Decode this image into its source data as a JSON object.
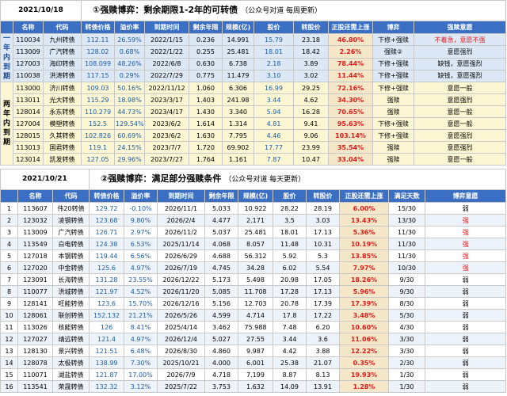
{
  "top": {
    "date": "2021/10/18",
    "title": "①强赎博弈：剩余期限1-2年的可转债",
    "subtitle": "（公众号对道 每周更新）",
    "headers": [
      "名称",
      "代码",
      "转债价格",
      "溢价率",
      "到期时间",
      "剩余年限",
      "规模(亿)",
      "股价",
      "转股价",
      "正股还需上涨",
      "博弈",
      "强赎意愿"
    ],
    "groups": [
      {
        "label": "一年内到期",
        "rows": [
          [
            "110034",
            "九州转债",
            "112.11",
            "26.59%",
            "2022/1/15",
            "0.236",
            "14.991",
            "15.79",
            "23.18",
            "46.80%",
            "下修+强赎",
            "不着急，意愿不强"
          ],
          [
            "113009",
            "广汽转债",
            "128.02",
            "0.68%",
            "2022/1/22",
            "0.255",
            "25.481",
            "18.01",
            "18.42",
            "2.26%",
            "强赎②",
            "意愿强烈"
          ],
          [
            "127003",
            "海印转债",
            "108.099",
            "48.26%",
            "2022/6/8",
            "0.630",
            "6.738",
            "2.18",
            "3.89",
            "78.44%",
            "下修+强赎",
            "缺钱，意愿强烈"
          ],
          [
            "110038",
            "洪涛转债",
            "117.15",
            "0.29%",
            "2022/7/29",
            "0.775",
            "11.479",
            "3.10",
            "3.02",
            "11.44%",
            "下修+强赎",
            "缺钱，意愿强烈"
          ]
        ]
      },
      {
        "label": "两年内到期",
        "rows": [
          [
            "113000",
            "济川转债",
            "109.03",
            "50.16%",
            "2022/11/12",
            "1.060",
            "6.306",
            "16.99",
            "29.25",
            "72.16%",
            "下修+强赎",
            "意愿一般"
          ],
          [
            "113011",
            "光大转债",
            "115.29",
            "18.98%",
            "2023/3/17",
            "1.403",
            "241.98",
            "3.44",
            "4.62",
            "34.30%",
            "强赎",
            "意愿强烈"
          ],
          [
            "128014",
            "永东转债",
            "110.279",
            "44.73%",
            "2023/4/17",
            "1.430",
            "3.340",
            "5.94",
            "16.28",
            "70.65%",
            "强赎",
            "意愿一般"
          ],
          [
            "127004",
            "模塑转债",
            "152.5",
            "129.54%",
            "2023/6/2",
            "1.614",
            "1.314",
            "4.81",
            "9.41",
            "95.63%",
            "下修+强赎",
            "意愿一般"
          ],
          [
            "128015",
            "久其转债",
            "102.826",
            "60.69%",
            "2023/6/2",
            "1.630",
            "7.795",
            "4.46",
            "9.06",
            "103.14%",
            "下修+强赎",
            "意愿强烈"
          ],
          [
            "113013",
            "国君转债",
            "119.1",
            "24.15%",
            "2023/7/7",
            "1.720",
            "69.902",
            "17.77",
            "23.99",
            "35.54%",
            "强赎",
            "意愿强烈"
          ],
          [
            "123014",
            "凯发转债",
            "127.05",
            "29.96%",
            "2023/7/27",
            "1.764",
            "1.161",
            "7.87",
            "10.47",
            "33.04%",
            "强赎",
            "意愿一般"
          ]
        ]
      }
    ]
  },
  "bottom": {
    "date": "2021/10/21",
    "title": "②强赎博弈：满足部分强赎条件",
    "subtitle": "（公众号对道 每天更新）",
    "headers": [
      "",
      "名称",
      "代码",
      "转债价格",
      "溢价率",
      "到期时间",
      "剩余年限",
      "规模(亿)",
      "股价",
      "转股价",
      "正股还需上涨",
      "满足天数",
      "博弈意愿"
    ],
    "rows": [
      [
        "1",
        "113607",
        "伟20转债",
        "129.72",
        "-0.10%",
        "2026/11/1",
        "5.033",
        "10.922",
        "28.22",
        "28.19",
        "6.00%",
        "15/30",
        "弱"
      ],
      [
        "2",
        "123032",
        "凌钢转债",
        "123.68",
        "9.80%",
        "2026/2/4",
        "4.477",
        "2.171",
        "3.5",
        "3.03",
        "13.43%",
        "13/30",
        "强"
      ],
      [
        "3",
        "113009",
        "广汽转债",
        "126.71",
        "2.97%",
        "2026/11/2",
        "5.037",
        "25.481",
        "18.01",
        "17.13",
        "5.36%",
        "11/30",
        "强"
      ],
      [
        "4",
        "113549",
        "白电转债",
        "124.38",
        "6.53%",
        "2025/11/14",
        "4.068",
        "8.057",
        "11.48",
        "10.31",
        "10.19%",
        "11/30",
        "强"
      ],
      [
        "5",
        "127018",
        "本钢转债",
        "119.44",
        "6.56%",
        "2026/6/29",
        "4.688",
        "56.312",
        "5.92",
        "5.3",
        "13.85%",
        "11/30",
        "强"
      ],
      [
        "6",
        "127020",
        "中金转债",
        "125.6",
        "4.97%",
        "2026/7/19",
        "4.745",
        "34.28",
        "6.02",
        "5.54",
        "7.97%",
        "10/30",
        "强"
      ],
      [
        "7",
        "123091",
        "长海转债",
        "131.28",
        "23.55%",
        "2026/12/22",
        "5.173",
        "5.498",
        "20.98",
        "17.05",
        "18.26%",
        "9/30",
        "弱"
      ],
      [
        "8",
        "110077",
        "洪城转债",
        "121.97",
        "4.52%",
        "2026/11/20",
        "5.085",
        "11.708",
        "17.28",
        "17.13",
        "5.96%",
        "9/30",
        "弱"
      ],
      [
        "9",
        "128141",
        "旺能转债",
        "123.6",
        "15.70%",
        "2026/12/16",
        "5.156",
        "12.703",
        "20.78",
        "17.39",
        "17.39%",
        "8/30",
        "弱"
      ],
      [
        "10",
        "128061",
        "联创转债",
        "152.132",
        "21.21%",
        "2026/5/26",
        "4.599",
        "4.714",
        "17.8",
        "17.22",
        "3.48%",
        "5/30",
        "弱"
      ],
      [
        "11",
        "113026",
        "核能转债",
        "126",
        "8.41%",
        "2025/4/14",
        "3.462",
        "75.988",
        "7.48",
        "6.20",
        "10.60%",
        "4/30",
        "弱"
      ],
      [
        "12",
        "127027",
        "靖远转债",
        "121.4",
        "4.97%",
        "2026/12/4",
        "5.027",
        "27.55",
        "3.44",
        "3.6",
        "11.06%",
        "3/30",
        "弱"
      ],
      [
        "13",
        "128130",
        "景兴转债",
        "121.51",
        "6.48%",
        "2026/8/30",
        "4.860",
        "9.987",
        "4.42",
        "3.88",
        "12.22%",
        "3/30",
        "弱"
      ],
      [
        "14",
        "128078",
        "太极转债",
        "138.99",
        "7.30%",
        "2025/10/21",
        "4.000",
        "6.001",
        "25.38",
        "21.07",
        "0.35%",
        "2/30",
        "弱"
      ],
      [
        "15",
        "110071",
        "湖盐转债",
        "121.87",
        "17.00%",
        "2026/7/9",
        "4.718",
        "7.199",
        "8.87",
        "8.13",
        "19.93%",
        "1/30",
        "弱"
      ],
      [
        "16",
        "113541",
        "荣晟转债",
        "132.32",
        "3.12%",
        "2025/7/22",
        "3.753",
        "1.632",
        "14.09",
        "13.91",
        "1.28%",
        "1/30",
        "弱"
      ]
    ]
  },
  "colors": {
    "header_bg": "#3b6fc4",
    "group1_bg": "#dde8f7",
    "group2_bg": "#fcf6d2",
    "rate_bg": "#f6e7c8",
    "red": "#e21b1b",
    "blue_text": "#1a5ca8"
  }
}
